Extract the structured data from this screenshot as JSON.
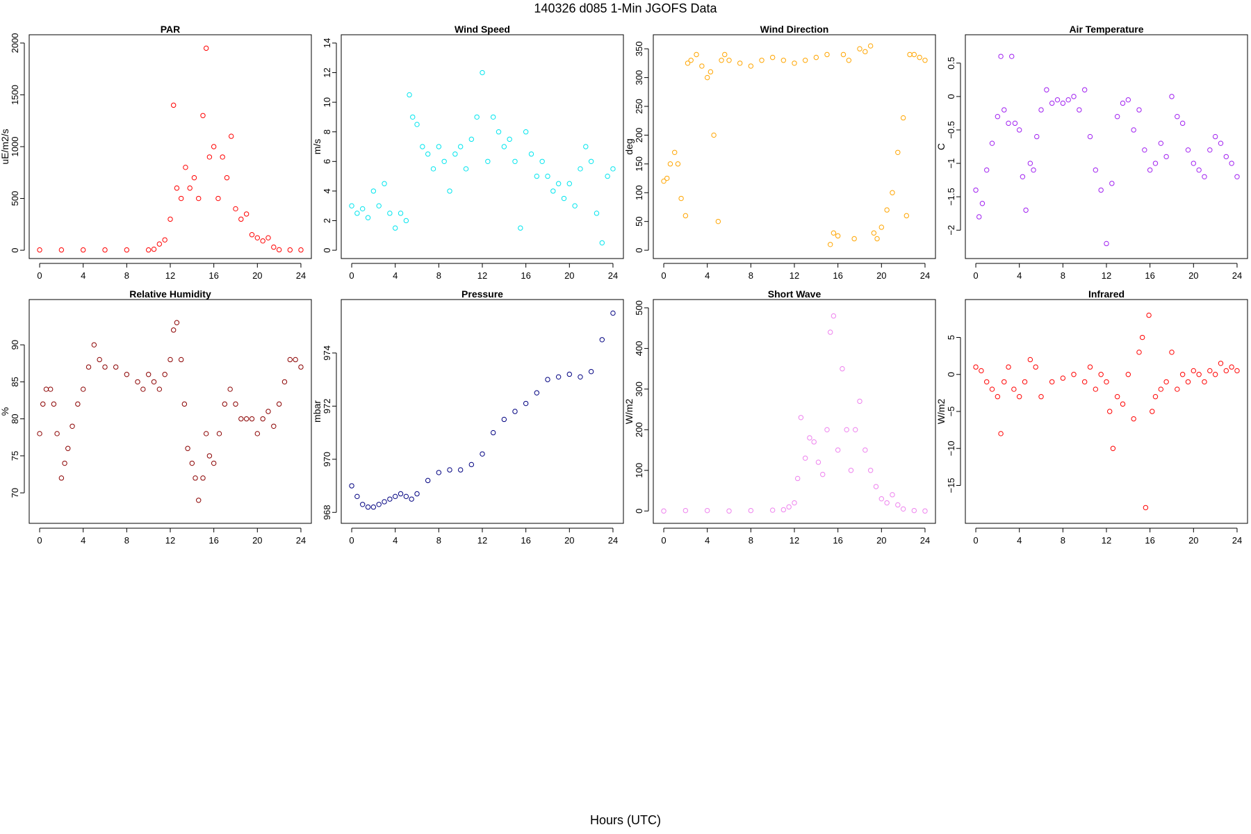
{
  "figure": {
    "title": "140326   d085   1-Min  JGOFS Data",
    "xlabel": "Hours (UTC)"
  },
  "chart_data": [
    {
      "type": "scatter",
      "title": "PAR",
      "ylabel": "uE/m2/s",
      "color": "#ff0000",
      "xlim": [
        0,
        24
      ],
      "ylim": [
        0,
        2000
      ],
      "xticks": [
        0,
        4,
        8,
        12,
        16,
        20,
        24
      ],
      "yticks": [
        0,
        500,
        1000,
        1500,
        2000
      ],
      "x": [
        0,
        2,
        4,
        6,
        8,
        10,
        10.5,
        11,
        11.5,
        12,
        12.3,
        12.6,
        13,
        13.4,
        13.8,
        14.2,
        14.6,
        15,
        15.3,
        15.6,
        16,
        16.4,
        16.8,
        17.2,
        17.6,
        18,
        18.5,
        19,
        19.5,
        20,
        20.5,
        21,
        21.5,
        22,
        23,
        24
      ],
      "y": [
        3,
        3,
        3,
        3,
        3,
        3,
        10,
        60,
        100,
        300,
        1400,
        600,
        500,
        800,
        600,
        700,
        500,
        1300,
        1950,
        900,
        1000,
        500,
        900,
        700,
        1100,
        400,
        300,
        350,
        150,
        120,
        90,
        120,
        30,
        5,
        3,
        3
      ]
    },
    {
      "type": "scatter",
      "title": "Wind Speed",
      "ylabel": "m/s",
      "color": "#00e5ee",
      "xlim": [
        0,
        24
      ],
      "ylim": [
        0,
        14
      ],
      "xticks": [
        0,
        4,
        8,
        12,
        16,
        20,
        24
      ],
      "yticks": [
        0,
        2,
        4,
        6,
        8,
        10,
        12,
        14
      ],
      "x": [
        0,
        0.5,
        1,
        1.5,
        2,
        2.5,
        3,
        3.5,
        4,
        4.5,
        5,
        5.3,
        5.6,
        6,
        6.5,
        7,
        7.5,
        8,
        8.5,
        9,
        9.5,
        10,
        10.5,
        11,
        11.5,
        12,
        12.5,
        13,
        13.5,
        14,
        14.5,
        15,
        15.5,
        16,
        16.5,
        17,
        17.5,
        18,
        18.5,
        19,
        19.5,
        20,
        20.5,
        21,
        21.5,
        22,
        22.5,
        23,
        23.5,
        24
      ],
      "y": [
        3,
        2.5,
        2.8,
        2.2,
        4,
        3,
        4.5,
        2.5,
        1.5,
        2.5,
        2,
        10.5,
        9,
        8.5,
        7,
        6.5,
        5.5,
        7,
        6,
        4,
        6.5,
        7,
        5.5,
        7.5,
        9,
        12,
        6,
        9,
        8,
        7,
        7.5,
        6,
        1.5,
        8,
        6.5,
        5,
        6,
        5,
        4,
        4.5,
        3.5,
        4.5,
        3,
        5.5,
        7,
        6,
        2.5,
        0.5,
        5,
        5.5
      ]
    },
    {
      "type": "scatter",
      "title": "Wind Direction",
      "ylabel": "deg",
      "color": "#ffa500",
      "xlim": [
        0,
        24
      ],
      "ylim": [
        0,
        360
      ],
      "xticks": [
        0,
        4,
        8,
        12,
        16,
        20,
        24
      ],
      "yticks": [
        0,
        50,
        100,
        150,
        200,
        250,
        300,
        350
      ],
      "x": [
        0,
        0.3,
        0.6,
        1,
        1.3,
        1.6,
        2,
        2.2,
        2.5,
        3,
        3.5,
        4,
        4.3,
        4.6,
        5,
        5.3,
        5.6,
        6,
        7,
        8,
        9,
        10,
        11,
        12,
        13,
        14,
        15,
        15.3,
        15.6,
        16,
        16.5,
        17,
        17.5,
        18,
        18.5,
        19,
        19.3,
        19.6,
        20,
        20.5,
        21,
        21.5,
        22,
        22.3,
        22.6,
        23,
        23.5,
        24
      ],
      "y": [
        120,
        125,
        150,
        170,
        150,
        90,
        60,
        325,
        330,
        340,
        320,
        300,
        310,
        200,
        50,
        330,
        340,
        330,
        325,
        320,
        330,
        335,
        330,
        325,
        330,
        335,
        340,
        10,
        30,
        25,
        340,
        330,
        20,
        350,
        345,
        355,
        30,
        20,
        40,
        70,
        100,
        170,
        230,
        60,
        340,
        340,
        335,
        330
      ]
    },
    {
      "type": "scatter",
      "title": "Air Temperature",
      "ylabel": "C",
      "color": "#a020f0",
      "xlim": [
        0,
        24
      ],
      "ylim": [
        -2.3,
        0.8
      ],
      "xticks": [
        0,
        4,
        8,
        12,
        16,
        20,
        24
      ],
      "yticks": [
        -2,
        -1.5,
        -1,
        -0.5,
        0,
        0.5
      ],
      "x": [
        0,
        0.3,
        0.6,
        1,
        1.5,
        2,
        2.3,
        2.6,
        3,
        3.3,
        3.6,
        4,
        4.3,
        4.6,
        5,
        5.3,
        5.6,
        6,
        6.5,
        7,
        7.5,
        8,
        8.5,
        9,
        9.5,
        10,
        10.5,
        11,
        11.5,
        12,
        12.5,
        13,
        13.5,
        14,
        14.5,
        15,
        15.5,
        16,
        16.5,
        17,
        17.5,
        18,
        18.5,
        19,
        19.5,
        20,
        20.5,
        21,
        21.5,
        22,
        22.5,
        23,
        23.5,
        24
      ],
      "y": [
        -1.4,
        -1.8,
        -1.6,
        -1.1,
        -0.7,
        -0.3,
        0.6,
        -0.2,
        -0.4,
        0.6,
        -0.4,
        -0.5,
        -1.2,
        -1.7,
        -1.0,
        -1.1,
        -0.6,
        -0.2,
        0.1,
        -0.1,
        -0.05,
        -0.1,
        -0.05,
        0.0,
        -0.2,
        0.1,
        -0.6,
        -1.1,
        -1.4,
        -2.2,
        -1.3,
        -0.3,
        -0.1,
        -0.05,
        -0.5,
        -0.2,
        -0.8,
        -1.1,
        -1.0,
        -0.7,
        -0.9,
        0.0,
        -0.3,
        -0.4,
        -0.8,
        -1.0,
        -1.1,
        -1.2,
        -0.8,
        -0.6,
        -0.7,
        -0.9,
        -1.0,
        -1.2
      ]
    },
    {
      "type": "scatter",
      "title": "Relative Humidity",
      "ylabel": "%",
      "color": "#8b0000",
      "xlim": [
        0,
        24
      ],
      "ylim": [
        67,
        95
      ],
      "xticks": [
        0,
        4,
        8,
        12,
        16,
        20,
        24
      ],
      "yticks": [
        70,
        75,
        80,
        85,
        90
      ],
      "x": [
        0,
        0.3,
        0.6,
        1,
        1.3,
        1.6,
        2,
        2.3,
        2.6,
        3,
        3.5,
        4,
        4.5,
        5,
        5.5,
        6,
        7,
        8,
        9,
        9.5,
        10,
        10.5,
        11,
        11.5,
        12,
        12.3,
        12.6,
        13,
        13.3,
        13.6,
        14,
        14.3,
        14.6,
        15,
        15.3,
        15.6,
        16,
        16.5,
        17,
        17.5,
        18,
        18.5,
        19,
        19.5,
        20,
        20.5,
        21,
        21.5,
        22,
        22.5,
        23,
        23.5,
        24
      ],
      "y": [
        78,
        82,
        84,
        84,
        82,
        78,
        72,
        74,
        76,
        79,
        82,
        84,
        87,
        90,
        88,
        87,
        87,
        86,
        85,
        84,
        86,
        85,
        84,
        86,
        88,
        92,
        93,
        88,
        82,
        76,
        74,
        72,
        69,
        72,
        78,
        75,
        74,
        78,
        82,
        84,
        82,
        80,
        80,
        80,
        78,
        80,
        81,
        79,
        82,
        85,
        88,
        88,
        87
      ]
    },
    {
      "type": "scatter",
      "title": "Pressure",
      "ylabel": "mbar",
      "color": "#000080",
      "xlim": [
        0,
        24
      ],
      "ylim": [
        967.9,
        975.7
      ],
      "xticks": [
        0,
        4,
        8,
        12,
        16,
        20,
        24
      ],
      "yticks": [
        968,
        970,
        972,
        974
      ],
      "x": [
        0,
        0.5,
        1,
        1.5,
        2,
        2.5,
        3,
        3.5,
        4,
        4.5,
        5,
        5.5,
        6,
        7,
        8,
        9,
        10,
        11,
        12,
        13,
        14,
        15,
        16,
        17,
        18,
        19,
        20,
        21,
        22,
        23,
        24
      ],
      "y": [
        969,
        968.6,
        968.3,
        968.2,
        968.2,
        968.3,
        968.4,
        968.5,
        968.6,
        968.7,
        968.6,
        968.5,
        968.7,
        969.2,
        969.5,
        969.6,
        969.6,
        969.8,
        970.2,
        971,
        971.5,
        971.8,
        972.1,
        972.5,
        973,
        973.1,
        973.2,
        973.1,
        973.3,
        974.5,
        975.5
      ]
    },
    {
      "type": "scatter",
      "title": "Short Wave",
      "ylabel": "W/m2",
      "color": "#ee82ee",
      "xlim": [
        0,
        24
      ],
      "ylim": [
        -10,
        500
      ],
      "xticks": [
        0,
        4,
        8,
        12,
        16,
        20,
        24
      ],
      "yticks": [
        0,
        100,
        200,
        300,
        400,
        500
      ],
      "x": [
        0,
        2,
        4,
        6,
        8,
        10,
        11,
        11.5,
        12,
        12.3,
        12.6,
        13,
        13.4,
        13.8,
        14.2,
        14.6,
        15,
        15.3,
        15.6,
        16,
        16.4,
        16.8,
        17.2,
        17.6,
        18,
        18.5,
        19,
        19.5,
        20,
        20.5,
        21,
        21.5,
        22,
        23,
        24
      ],
      "y": [
        0,
        1,
        1,
        0,
        1,
        2,
        3,
        10,
        20,
        80,
        230,
        130,
        180,
        170,
        120,
        90,
        200,
        440,
        480,
        150,
        350,
        200,
        100,
        200,
        270,
        150,
        100,
        60,
        30,
        20,
        40,
        15,
        5,
        1,
        0
      ]
    },
    {
      "type": "scatter",
      "title": "Infrared",
      "ylabel": "W/m2",
      "color": "#ff0000",
      "xlim": [
        0,
        24
      ],
      "ylim": [
        -19,
        9
      ],
      "xticks": [
        0,
        4,
        8,
        12,
        16,
        20,
        24
      ],
      "yticks": [
        -15,
        -10,
        -5,
        0,
        5
      ],
      "x": [
        0,
        0.5,
        1,
        1.5,
        2,
        2.3,
        2.6,
        3,
        3.5,
        4,
        4.5,
        5,
        5.5,
        6,
        7,
        8,
        9,
        10,
        10.5,
        11,
        11.5,
        12,
        12.3,
        12.6,
        13,
        13.5,
        14,
        14.5,
        15,
        15.3,
        15.6,
        15.9,
        16.2,
        16.5,
        17,
        17.5,
        18,
        18.5,
        19,
        19.5,
        20,
        20.5,
        21,
        21.5,
        22,
        22.5,
        23,
        23.5,
        24
      ],
      "y": [
        1,
        0.5,
        -1,
        -2,
        -3,
        -8,
        -1,
        1,
        -2,
        -3,
        -1,
        2,
        1,
        -3,
        -1,
        -0.5,
        0,
        -1,
        1,
        -2,
        0,
        -1,
        -5,
        -10,
        -3,
        -4,
        0,
        -6,
        3,
        5,
        -18,
        8,
        -5,
        -3,
        -2,
        -1,
        3,
        -2,
        0,
        -1,
        0.5,
        0,
        -1,
        0.5,
        0,
        1.5,
        0.5,
        1,
        0.5
      ]
    }
  ]
}
